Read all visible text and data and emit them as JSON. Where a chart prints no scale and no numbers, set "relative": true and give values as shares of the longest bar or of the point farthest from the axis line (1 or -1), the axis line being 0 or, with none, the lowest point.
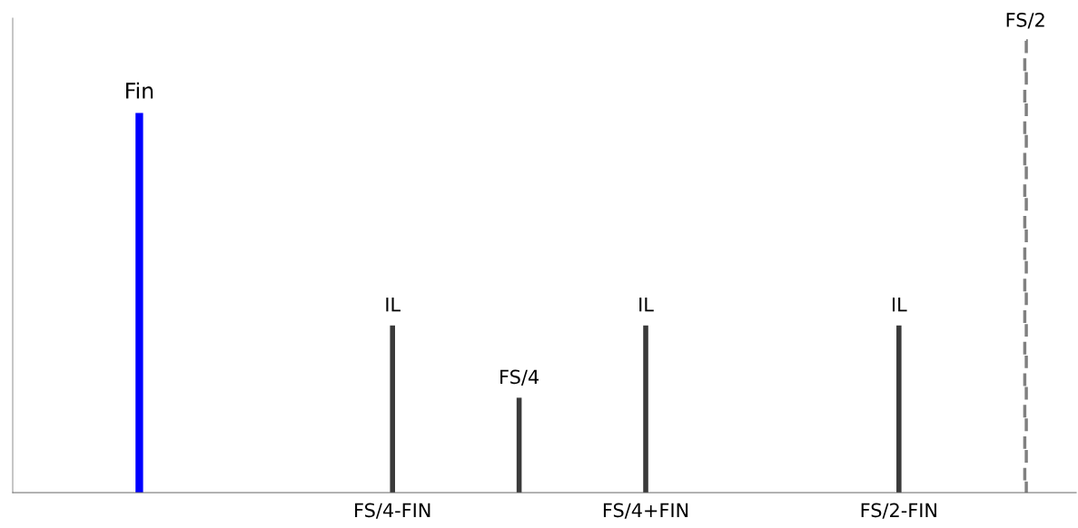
{
  "chart_data": {
    "type": "bar",
    "relative": true,
    "categories": [
      null,
      null,
      null,
      "FS/4-FIN",
      null,
      "FS/4+FIN",
      null,
      "FS/2-FIN",
      null
    ],
    "series": [
      {
        "name": "Fin",
        "color": "#0000ff",
        "values": [
          null,
          0.84,
          null,
          null,
          null,
          null,
          null,
          null,
          null
        ]
      },
      {
        "name": "IL",
        "color": "#3a3a3a",
        "values": [
          null,
          null,
          null,
          0.37,
          null,
          0.37,
          null,
          0.37,
          null
        ]
      },
      {
        "name": "FS/4",
        "color": "#3a3a3a",
        "values": [
          null,
          null,
          null,
          null,
          0.21,
          null,
          null,
          null,
          null
        ]
      },
      {
        "name": "FS/2",
        "color": "#808080",
        "line_style": "dashed",
        "values": [
          null,
          null,
          null,
          null,
          null,
          null,
          null,
          null,
          1
        ]
      }
    ]
  }
}
